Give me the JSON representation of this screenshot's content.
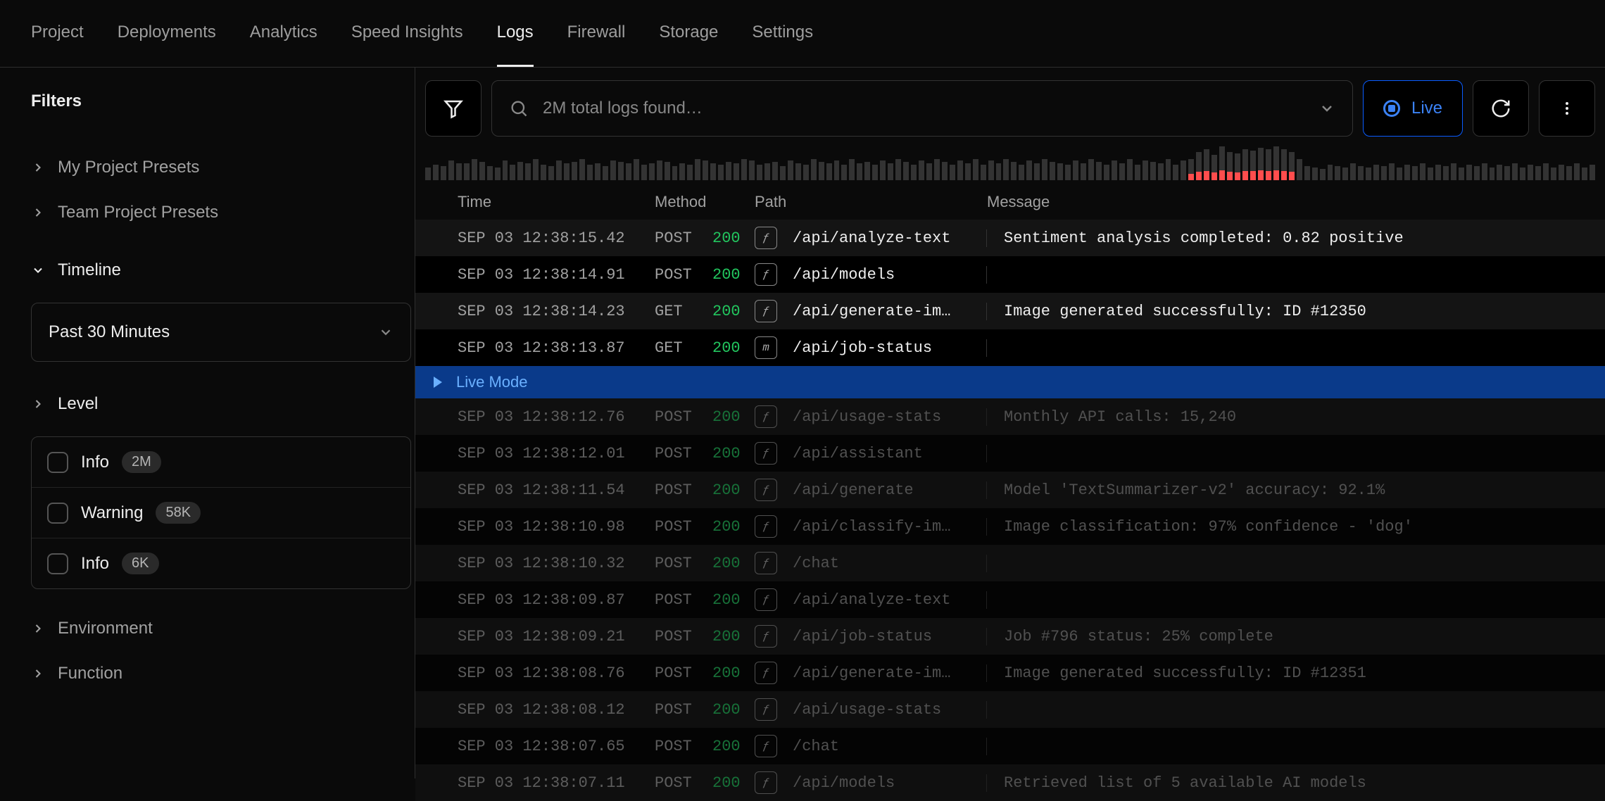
{
  "topnav": {
    "tabs": [
      "Project",
      "Deployments",
      "Analytics",
      "Speed Insights",
      "Logs",
      "Firewall",
      "Storage",
      "Settings"
    ],
    "active_index": 4
  },
  "sidebar": {
    "title": "Filters",
    "presets": [
      {
        "label": "My Project Presets"
      },
      {
        "label": "Team Project Presets"
      }
    ],
    "timeline": {
      "header": "Timeline",
      "selected": "Past 30 Minutes"
    },
    "level": {
      "header": "Level",
      "items": [
        {
          "label": "Info",
          "count": "2M"
        },
        {
          "label": "Warning",
          "count": "58K"
        },
        {
          "label": "Info",
          "count": "6K"
        }
      ]
    },
    "extra": [
      {
        "label": "Environment"
      },
      {
        "label": "Function"
      }
    ]
  },
  "toolbar": {
    "search_placeholder": "2M total logs found…",
    "live_label": "Live"
  },
  "histogram": {
    "bar_color": "#333333",
    "err_color": "#ff4d4d",
    "heights": [
      18,
      22,
      20,
      28,
      24,
      24,
      30,
      26,
      20,
      18,
      28,
      22,
      26,
      24,
      30,
      22,
      20,
      28,
      24,
      26,
      30,
      22,
      24,
      20,
      28,
      26,
      24,
      30,
      22,
      24,
      28,
      26,
      20,
      24,
      22,
      30,
      28,
      24,
      22,
      26,
      24,
      30,
      28,
      22,
      24,
      26,
      20,
      28,
      24,
      22,
      30,
      26,
      24,
      28,
      22,
      30,
      24,
      26,
      22,
      28,
      24,
      30,
      26,
      22,
      28,
      24,
      30,
      26,
      22,
      28,
      24,
      30,
      22,
      28,
      24,
      30,
      26,
      22,
      28,
      24,
      30,
      26,
      24,
      22,
      28,
      24,
      30,
      26,
      22,
      28,
      24,
      30,
      22,
      28,
      26,
      24,
      30,
      22,
      28,
      30,
      40,
      44,
      36,
      48,
      40,
      38,
      44,
      42,
      46,
      44,
      48,
      44,
      40,
      30,
      20,
      18,
      16,
      22,
      20,
      18,
      24,
      20,
      18,
      22,
      20,
      24,
      18,
      22,
      20,
      24,
      18,
      22,
      20,
      24,
      18,
      22,
      20,
      24,
      18,
      22,
      20,
      24,
      18,
      22,
      20,
      24,
      18,
      22,
      20,
      24,
      18,
      22
    ],
    "errors_at": [
      99,
      100,
      101,
      102,
      103,
      104,
      105,
      106,
      107,
      108,
      109,
      110,
      111,
      112
    ],
    "error_ratio": 0.3
  },
  "table": {
    "headers": {
      "time": "Time",
      "method": "Method",
      "path": "Path",
      "message": "Message"
    },
    "rows": [
      {
        "ts": "SEP 03 12:38:15.42",
        "method": "POST",
        "status": "200",
        "icon": "fn",
        "path": "/api/analyze-text",
        "msg": "Sentiment analysis completed: 0.82 positive",
        "dim": false
      },
      {
        "ts": "SEP 03 12:38:14.91",
        "method": "POST",
        "status": "200",
        "icon": "fn",
        "path": "/api/models",
        "msg": "",
        "dim": false
      },
      {
        "ts": "SEP 03 12:38:14.23",
        "method": "GET",
        "status": "200",
        "icon": "fn",
        "path": "/api/generate-im…",
        "msg": "Image generated successfully: ID #12350",
        "dim": false
      },
      {
        "ts": "SEP 03 12:38:13.87",
        "method": "GET",
        "status": "200",
        "icon": "mw",
        "path": "/api/job-status",
        "msg": "",
        "dim": false
      },
      {
        "live": true,
        "label": "Live Mode"
      },
      {
        "ts": "SEP 03 12:38:12.76",
        "method": "POST",
        "status": "200",
        "icon": "fn",
        "path": "/api/usage-stats",
        "msg": "Monthly API calls: 15,240",
        "dim": true
      },
      {
        "ts": "SEP 03 12:38:12.01",
        "method": "POST",
        "status": "200",
        "icon": "fn",
        "path": "/api/assistant",
        "msg": "",
        "dim": true
      },
      {
        "ts": "SEP 03 12:38:11.54",
        "method": "POST",
        "status": "200",
        "icon": "fn",
        "path": "/api/generate",
        "msg": "Model 'TextSummarizer-v2' accuracy: 92.1%",
        "dim": true
      },
      {
        "ts": "SEP 03 12:38:10.98",
        "method": "POST",
        "status": "200",
        "icon": "fn",
        "path": "/api/classify-im…",
        "msg": "Image classification: 97% confidence - 'dog'",
        "dim": true
      },
      {
        "ts": "SEP 03 12:38:10.32",
        "method": "POST",
        "status": "200",
        "icon": "fn",
        "path": "/chat",
        "msg": "",
        "dim": true
      },
      {
        "ts": "SEP 03 12:38:09.87",
        "method": "POST",
        "status": "200",
        "icon": "fn",
        "path": "/api/analyze-text",
        "msg": "",
        "dim": true
      },
      {
        "ts": "SEP 03 12:38:09.21",
        "method": "POST",
        "status": "200",
        "icon": "fn",
        "path": "/api/job-status",
        "msg": "Job #796 status: 25% complete",
        "dim": true
      },
      {
        "ts": "SEP 03 12:38:08.76",
        "method": "POST",
        "status": "200",
        "icon": "fn",
        "path": "/api/generate-im…",
        "msg": "Image generated successfully: ID #12351",
        "dim": true
      },
      {
        "ts": "SEP 03 12:38:08.12",
        "method": "POST",
        "status": "200",
        "icon": "fn",
        "path": "/api/usage-stats",
        "msg": "",
        "dim": true
      },
      {
        "ts": "SEP 03 12:38:07.65",
        "method": "POST",
        "status": "200",
        "icon": "fn",
        "path": "/chat",
        "msg": "",
        "dim": true
      },
      {
        "ts": "SEP 03 12:38:07.11",
        "method": "POST",
        "status": "200",
        "icon": "fn",
        "path": "/api/models",
        "msg": "Retrieved list of 5 available AI models",
        "dim": true
      }
    ]
  },
  "colors": {
    "bg": "#0a0a0a",
    "border": "#2e2e2e",
    "text": "#ededed",
    "muted": "#a1a1a1",
    "accent_blue": "#3b82f6",
    "livemode_bg": "#0a3a8a",
    "status_ok": "#22c55e"
  }
}
